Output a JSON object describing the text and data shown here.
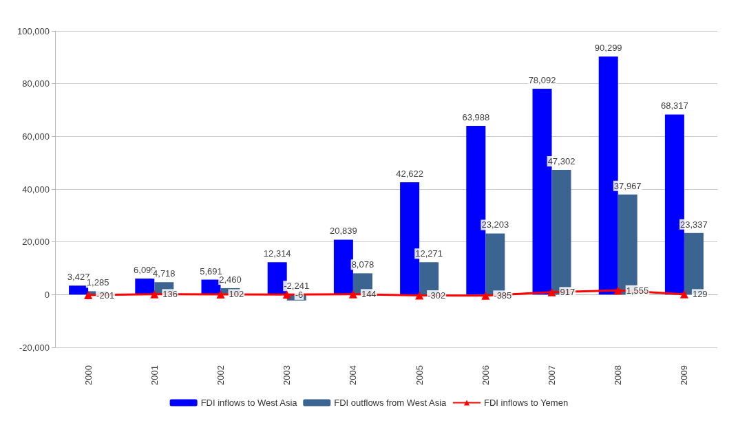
{
  "chart_data": {
    "type": "bar",
    "categories": [
      "2000",
      "2001",
      "2002",
      "2003",
      "2004",
      "2005",
      "2006",
      "2007",
      "2008",
      "2009"
    ],
    "series": [
      {
        "name": "FDI inflows to West Asia",
        "color": "#0000ff",
        "values": [
          3427,
          6099,
          5691,
          12314,
          20839,
          42622,
          63988,
          78092,
          90299,
          68317
        ],
        "value_labels": [
          "3,427",
          "6,099",
          "5,691",
          "12,314",
          "20,839",
          "42,622",
          "63,988",
          "78,092",
          "90,299",
          "68,317"
        ]
      },
      {
        "name": "FDI outflows from West Asia",
        "color": "#3b6590",
        "values": [
          1285,
          4718,
          2460,
          -2241,
          8078,
          12271,
          23203,
          47302,
          37967,
          23337
        ],
        "value_labels": [
          "1,285",
          "4,718",
          "2,460",
          "-2,241",
          "8,078",
          "12,271",
          "23,203",
          "47,302",
          "37,967",
          "23,337"
        ]
      },
      {
        "name": "FDI inflows to Yemen",
        "type": "line",
        "color": "#ff0000",
        "marker": "triangle",
        "values": [
          -201,
          136,
          102,
          -6,
          144,
          -302,
          -385,
          917,
          1555,
          129
        ],
        "value_labels": [
          "-201",
          "136",
          "102",
          "-6",
          "144",
          "-302",
          "-385",
          "917",
          "1,555",
          "129"
        ]
      }
    ],
    "ylim": [
      -20000,
      100000
    ],
    "yticks": [
      {
        "value": -20000,
        "label": "-20,000"
      },
      {
        "value": 0,
        "label": "0"
      },
      {
        "value": 20000,
        "label": "20,000"
      },
      {
        "value": 40000,
        "label": "40,000"
      },
      {
        "value": 60000,
        "label": "60,000"
      },
      {
        "value": 80000,
        "label": "80,000"
      },
      {
        "value": 100000,
        "label": "100,000"
      }
    ],
    "grid": "y",
    "legend": "bottom"
  }
}
